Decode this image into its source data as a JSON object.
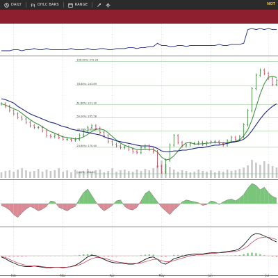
{
  "toolbar": {
    "items": [
      {
        "label": "DAILY",
        "icon": "clock-icon"
      },
      {
        "label": "OHLC BARS",
        "icon": "bars-icon"
      },
      {
        "label": "RANGE",
        "icon": "range-icon"
      }
    ],
    "notice": "NOT"
  },
  "colors": {
    "band": "#8e1f2f",
    "up_bar": "#2f7d2f",
    "down_bar": "#c2304a",
    "sma_fast": "#2e8b2e",
    "sma_slow": "#1a237e",
    "fib_line": "#7fbf7f",
    "hist_pos": "#79c57a",
    "hist_neg": "#d98a94"
  },
  "chart_data": {
    "type": "line",
    "title": "",
    "x_ticks": [
      "Feb",
      "Mar",
      "Apr",
      "May",
      "Jun",
      "Jul"
    ],
    "fib_levels": [
      {
        "label": "100.00%: 272.24",
        "value": 272.24
      },
      {
        "label": "78.60%: 243.69",
        "value": 243.69
      },
      {
        "label": "61.80%: 221.30",
        "value": 221.3
      },
      {
        "label": "50.00%: 205.58",
        "value": 205.58
      },
      {
        "label": "38.20%: 189.85",
        "value": 189.85
      },
      {
        "label": "23.60%: 170.40",
        "value": 170.4
      },
      {
        "label": "0.00%: 138.95",
        "value": 138.95
      }
    ],
    "price_ylim": [
      134,
      276
    ],
    "price_series": [
      {
        "values": [
          222,
          219,
          214,
          210,
          206,
          204,
          200,
          196,
          194,
          194,
          190,
          184,
          183,
          185,
          182,
          180,
          180,
          179,
          180,
          185,
          190,
          194,
          196,
          193,
          188,
          184,
          177,
          174,
          172,
          170,
          171,
          168,
          165,
          164,
          170,
          172,
          168,
          165,
          148,
          141,
          155,
          173,
          184,
          176,
          172,
          173,
          175,
          175,
          176,
          174,
          176,
          177,
          177,
          175,
          173,
          178,
          182,
          180,
          183,
          197,
          214,
          240,
          256,
          262,
          258,
          252,
          245,
          250
        ]
      },
      {
        "name": "",
        "values": [
          228,
          227,
          225,
          223,
          219,
          216,
          213,
          210,
          208,
          206,
          204,
          202,
          200,
          199,
          197,
          195,
          194,
          192,
          191,
          190,
          189,
          188,
          187,
          186,
          185,
          183,
          181,
          180,
          178,
          177,
          176,
          175,
          174,
          173,
          172,
          172,
          172,
          171,
          169,
          166,
          165,
          165,
          166,
          166,
          167,
          167,
          168,
          169,
          170,
          170,
          171,
          172,
          173,
          173,
          174,
          175,
          176,
          177,
          178,
          180,
          184,
          190,
          197,
          204,
          210,
          215,
          219,
          222
        ]
      }
    ],
    "volume_values": [
      8,
      10,
      11,
      9,
      12,
      14,
      11,
      9,
      10,
      13,
      9,
      12,
      10,
      11,
      14,
      9,
      11,
      8,
      12,
      9,
      10,
      13,
      9,
      11,
      12,
      8,
      10,
      14,
      9,
      11,
      12,
      10,
      9,
      12,
      10,
      13,
      11,
      14,
      18,
      25,
      20,
      16,
      12,
      9,
      11,
      10,
      8,
      9,
      12,
      10,
      9,
      11,
      8,
      10,
      9,
      12,
      10,
      11,
      13,
      15,
      18,
      26,
      22,
      19,
      24,
      20,
      17,
      15
    ],
    "top_line_values": [
      2,
      2,
      2,
      3,
      3,
      2,
      3,
      3,
      4,
      3,
      3,
      4,
      3,
      3,
      3,
      3,
      3,
      4,
      3,
      3,
      3,
      4,
      3,
      3,
      4,
      4,
      3,
      3,
      4,
      4,
      4,
      5,
      5,
      4,
      5,
      5,
      6,
      6,
      9,
      7,
      7,
      6,
      6,
      7,
      7,
      6,
      7,
      7,
      7,
      7,
      7,
      7,
      7,
      8,
      7,
      7,
      8,
      8,
      8,
      9,
      22,
      23,
      22,
      23,
      22,
      23,
      22,
      22
    ],
    "momentum_values": [
      -2,
      -4,
      -7,
      -12,
      -15,
      -10,
      -6,
      -3,
      -5,
      -8,
      -6,
      -3,
      3,
      2,
      -4,
      -6,
      -8,
      -5,
      -3,
      5,
      12,
      16,
      9,
      2,
      -4,
      -8,
      -5,
      -2,
      3,
      4,
      -3,
      -6,
      -7,
      -4,
      3,
      11,
      14,
      8,
      2,
      -4,
      -8,
      -12,
      -7,
      -3,
      2,
      4,
      3,
      2,
      1,
      -2,
      -1,
      3,
      2,
      -1,
      2,
      4,
      5,
      3,
      6,
      10,
      17,
      22,
      20,
      15,
      18,
      12,
      8,
      6
    ],
    "macd_series": [
      {
        "values": [
          -0.2,
          -0.5,
          -0.9,
          -1.2,
          -1.5,
          -1.7,
          -1.8,
          -1.8,
          -1.7,
          -1.8,
          -1.9,
          -2.0,
          -2.0,
          -1.9,
          -1.9,
          -2.0,
          -1.9,
          -1.8,
          -1.6,
          -1.2,
          -0.7,
          -0.2,
          0.1,
          0.0,
          -0.3,
          -0.6,
          -0.9,
          -1.1,
          -1.2,
          -1.2,
          -1.3,
          -1.4,
          -1.4,
          -1.3,
          -1.0,
          -0.6,
          -0.3,
          -0.2,
          -0.6,
          -1.2,
          -1.4,
          -1.0,
          -0.5,
          -0.3,
          -0.1,
          0.1,
          0.2,
          0.3,
          0.3,
          0.3,
          0.4,
          0.5,
          0.5,
          0.5,
          0.6,
          0.7,
          0.8,
          0.9,
          1.2,
          1.8,
          2.6,
          3.4,
          3.7,
          3.6,
          3.3,
          3.0,
          2.6,
          2.3
        ]
      },
      {
        "values": [
          -0.1,
          -0.3,
          -0.6,
          -0.9,
          -1.2,
          -1.4,
          -1.6,
          -1.7,
          -1.7,
          -1.7,
          -1.8,
          -1.9,
          -1.9,
          -1.9,
          -1.9,
          -1.9,
          -1.9,
          -1.8,
          -1.7,
          -1.5,
          -1.2,
          -0.8,
          -0.5,
          -0.3,
          -0.3,
          -0.4,
          -0.6,
          -0.8,
          -1.0,
          -1.1,
          -1.2,
          -1.3,
          -1.3,
          -1.3,
          -1.2,
          -1.0,
          -0.8,
          -0.6,
          -0.6,
          -0.8,
          -1.0,
          -1.0,
          -0.8,
          -0.6,
          -0.4,
          -0.2,
          0.0,
          0.1,
          0.2,
          0.2,
          0.3,
          0.4,
          0.4,
          0.5,
          0.5,
          0.6,
          0.7,
          0.7,
          0.9,
          1.2,
          1.6,
          2.2,
          2.7,
          3.0,
          3.1,
          3.1,
          2.9,
          2.7
        ]
      }
    ]
  }
}
